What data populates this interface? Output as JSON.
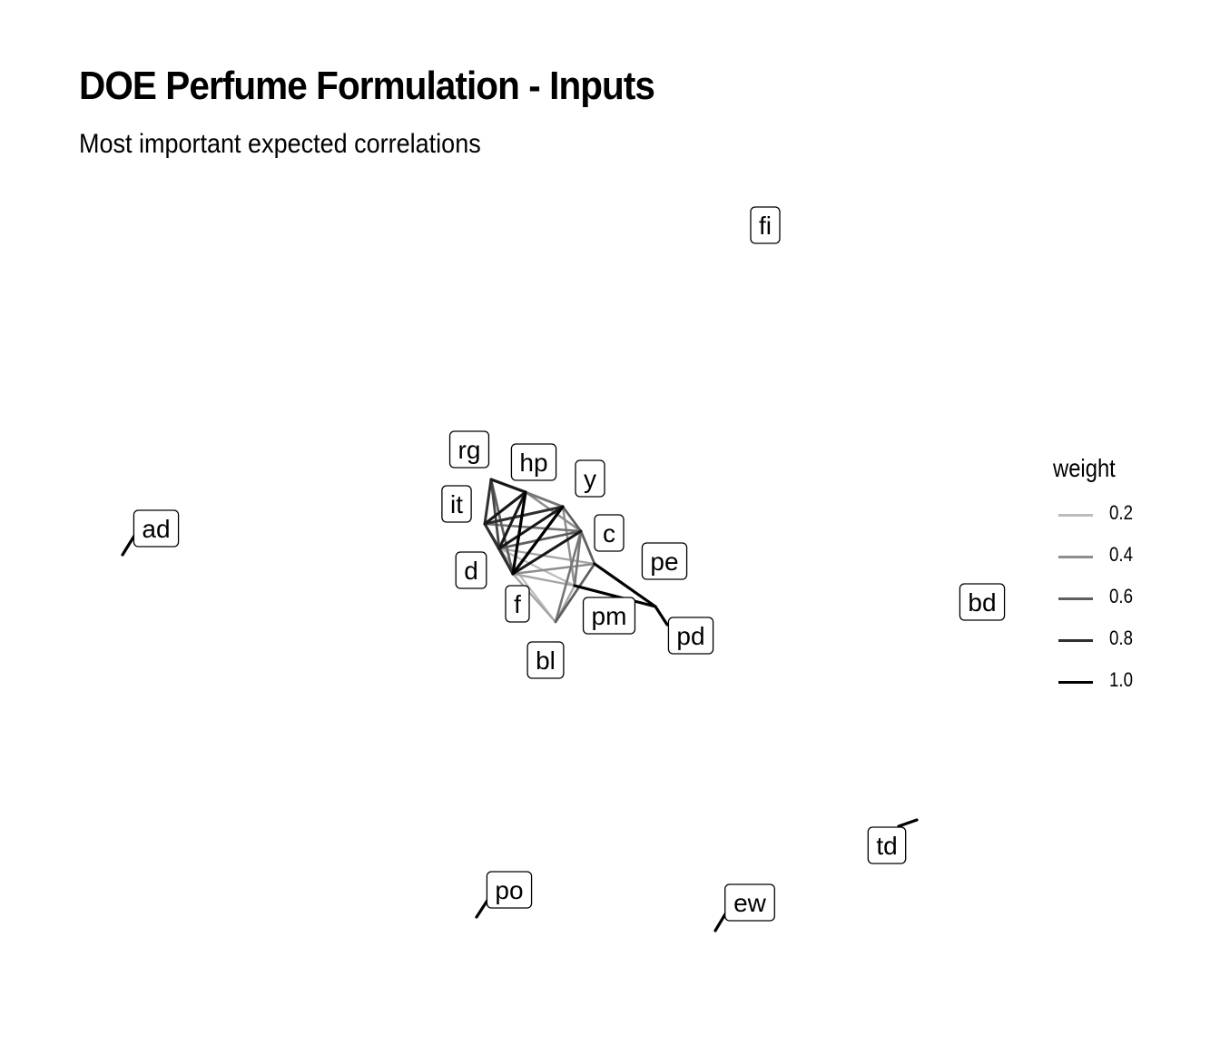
{
  "title": "DOE Perfume Formulation - Inputs",
  "subtitle": "Most important expected correlations",
  "legend": {
    "title": "weight",
    "items": [
      {
        "label": "0.2",
        "weight": 0.2
      },
      {
        "label": "0.4",
        "weight": 0.4
      },
      {
        "label": "0.6",
        "weight": 0.6
      },
      {
        "label": "0.8",
        "weight": 0.8
      },
      {
        "label": "1.0",
        "weight": 1.0
      }
    ]
  },
  "nodes": [
    {
      "id": "rg"
    },
    {
      "id": "hp"
    },
    {
      "id": "y"
    },
    {
      "id": "it"
    },
    {
      "id": "c"
    },
    {
      "id": "d"
    },
    {
      "id": "pe"
    },
    {
      "id": "f"
    },
    {
      "id": "pm"
    },
    {
      "id": "pd"
    },
    {
      "id": "bl"
    },
    {
      "id": "ad"
    },
    {
      "id": "fi"
    },
    {
      "id": "bd"
    },
    {
      "id": "td"
    },
    {
      "id": "po"
    },
    {
      "id": "ew"
    }
  ],
  "edges": [
    {
      "from": "rg",
      "to": "hp",
      "weight": 0.9
    },
    {
      "from": "rg",
      "to": "it",
      "weight": 0.8
    },
    {
      "from": "rg",
      "to": "d",
      "weight": 0.7
    },
    {
      "from": "rg",
      "to": "y",
      "weight": 0.5
    },
    {
      "from": "rg",
      "to": "f",
      "weight": 0.6
    },
    {
      "from": "hp",
      "to": "it",
      "weight": 0.9
    },
    {
      "from": "hp",
      "to": "y",
      "weight": 0.5
    },
    {
      "from": "hp",
      "to": "f",
      "weight": 1.0
    },
    {
      "from": "hp",
      "to": "d",
      "weight": 0.9
    },
    {
      "from": "hp",
      "to": "c",
      "weight": 0.4
    },
    {
      "from": "y",
      "to": "it",
      "weight": 0.8
    },
    {
      "from": "y",
      "to": "f",
      "weight": 1.0
    },
    {
      "from": "y",
      "to": "d",
      "weight": 0.9
    },
    {
      "from": "y",
      "to": "c",
      "weight": 0.6
    },
    {
      "from": "y",
      "to": "pm",
      "weight": 0.4
    },
    {
      "from": "it",
      "to": "d",
      "weight": 0.8
    },
    {
      "from": "it",
      "to": "f",
      "weight": 0.7
    },
    {
      "from": "it",
      "to": "c",
      "weight": 0.5
    },
    {
      "from": "c",
      "to": "f",
      "weight": 0.9
    },
    {
      "from": "c",
      "to": "d",
      "weight": 0.6
    },
    {
      "from": "c",
      "to": "pe",
      "weight": 0.6
    },
    {
      "from": "c",
      "to": "pm",
      "weight": 0.5
    },
    {
      "from": "c",
      "to": "bl",
      "weight": 0.5
    },
    {
      "from": "d",
      "to": "f",
      "weight": 0.8
    },
    {
      "from": "d",
      "to": "pe",
      "weight": 0.3
    },
    {
      "from": "d",
      "to": "pm",
      "weight": 0.2
    },
    {
      "from": "d",
      "to": "bl",
      "weight": 0.2
    },
    {
      "from": "f",
      "to": "pe",
      "weight": 0.4
    },
    {
      "from": "f",
      "to": "bl",
      "weight": 0.3
    },
    {
      "from": "f",
      "to": "pm",
      "weight": 0.3
    },
    {
      "from": "pe",
      "to": "pd",
      "weight": 1.0
    },
    {
      "from": "pe",
      "to": "bl",
      "weight": 0.6
    },
    {
      "from": "pm",
      "to": "pd",
      "weight": 1.0
    },
    {
      "from": "pm",
      "to": "bl",
      "weight": 0.3
    }
  ],
  "self_loops": [
    {
      "node": "ad",
      "weight": 1.0
    },
    {
      "node": "po",
      "weight": 1.0
    },
    {
      "node": "ew",
      "weight": 1.0
    },
    {
      "node": "td",
      "weight": 1.0
    },
    {
      "node": "pd",
      "weight": 1.0
    }
  ]
}
